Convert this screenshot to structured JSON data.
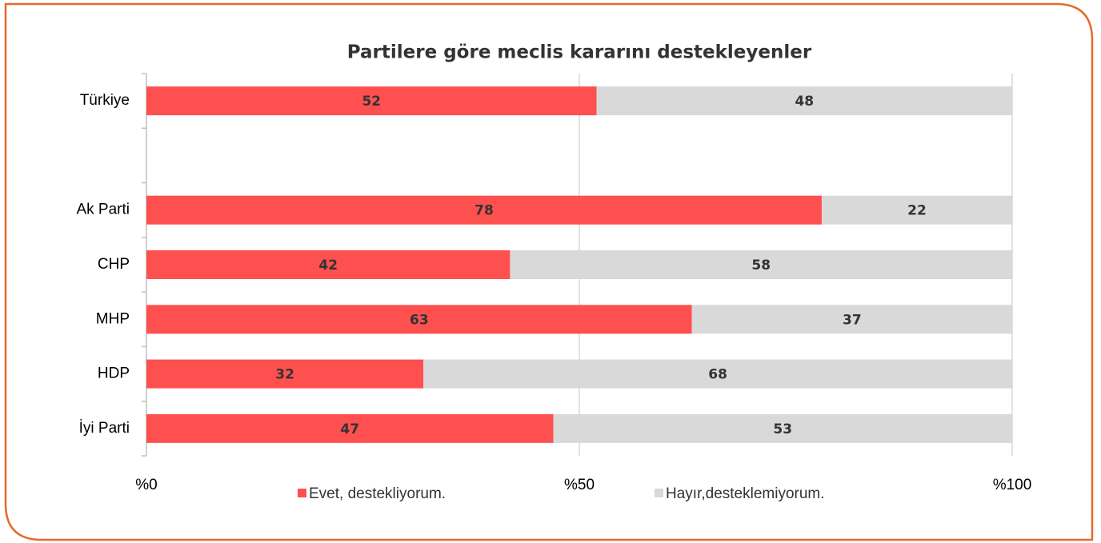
{
  "chart_data": {
    "type": "stacked_bar_horizontal",
    "title": "Partilere göre meclis kararını destekleyenler",
    "categories": [
      "Türkiye",
      null,
      "Ak Parti",
      "CHP",
      "MHP",
      "HDP",
      "İyi Parti"
    ],
    "series": [
      {
        "name": "Evet, destekliyorum.",
        "color": "#ff5050",
        "values": [
          52,
          null,
          78,
          42,
          63,
          32,
          47
        ]
      },
      {
        "name": "Hayır,desteklemiyorum.",
        "color": "#d9d9d9",
        "values": [
          48,
          null,
          22,
          58,
          37,
          68,
          53
        ]
      }
    ],
    "xlim": [
      0,
      100
    ],
    "xticks": [
      {
        "value": 0,
        "label": "%0"
      },
      {
        "value": 50,
        "label": "%50"
      },
      {
        "value": 100,
        "label": "%100"
      }
    ],
    "grid": true,
    "legend": "bottom"
  }
}
